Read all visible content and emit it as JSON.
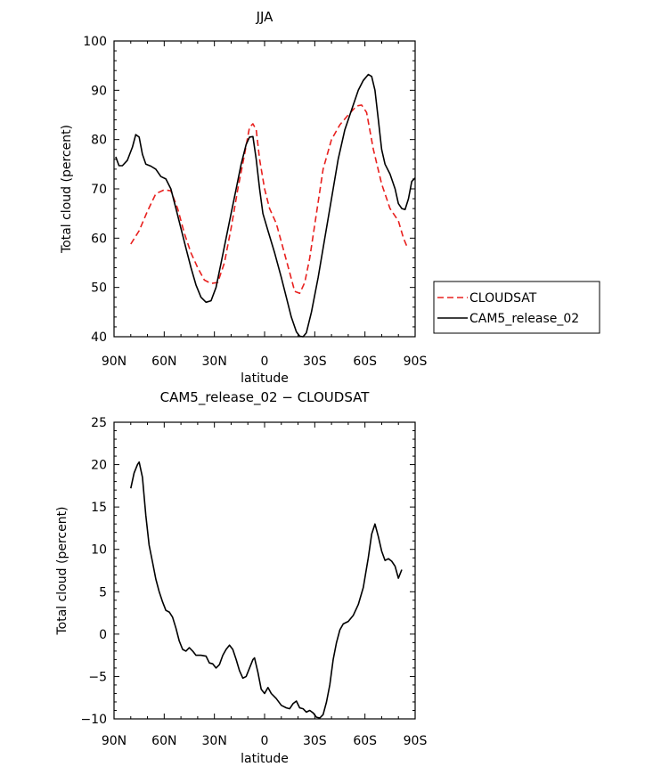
{
  "chart_data": [
    {
      "type": "line",
      "title": "JJA",
      "xlabel": "latitude",
      "ylabel": "Total cloud (percent)",
      "xlim": [
        90,
        -90
      ],
      "ylim": [
        40,
        100
      ],
      "x_ticks": [
        90,
        60,
        30,
        0,
        -30,
        -60,
        -90
      ],
      "x_tick_labels": [
        "90N",
        "60N",
        "30N",
        "0",
        "30S",
        "60S",
        "90S"
      ],
      "y_ticks": [
        40,
        50,
        60,
        70,
        80,
        90,
        100
      ],
      "y_tick_labels": [
        "40",
        "50",
        "60",
        "70",
        "80",
        "90",
        "100"
      ],
      "legend_position": "right",
      "series": [
        {
          "name": "CLOUDSAT",
          "color": "#e8201e",
          "dash": "dashed",
          "points": [
            [
              80,
              58.8
            ],
            [
              75,
              61.5
            ],
            [
              70,
              65.5
            ],
            [
              65,
              69
            ],
            [
              60,
              69.8
            ],
            [
              56,
              69.6
            ],
            [
              52,
              66
            ],
            [
              48,
              61
            ],
            [
              44,
              57
            ],
            [
              40,
              54
            ],
            [
              36,
              51.5
            ],
            [
              32,
              50.8
            ],
            [
              28,
              51
            ],
            [
              24,
              55
            ],
            [
              20,
              62
            ],
            [
              16,
              70
            ],
            [
              12,
              77
            ],
            [
              9,
              82.5
            ],
            [
              7,
              83.2
            ],
            [
              5,
              82
            ],
            [
              3,
              76
            ],
            [
              0,
              70
            ],
            [
              -3,
              66
            ],
            [
              -7,
              63
            ],
            [
              -11,
              58
            ],
            [
              -15,
              53
            ],
            [
              -18,
              49.2
            ],
            [
              -21,
              48.8
            ],
            [
              -24,
              51
            ],
            [
              -27,
              56
            ],
            [
              -31,
              65
            ],
            [
              -35,
              74
            ],
            [
              -40,
              80
            ],
            [
              -45,
              83
            ],
            [
              -50,
              85
            ],
            [
              -55,
              86.8
            ],
            [
              -58,
              87
            ],
            [
              -61,
              85.5
            ],
            [
              -65,
              78
            ],
            [
              -70,
              71
            ],
            [
              -75,
              66
            ],
            [
              -80,
              63.5
            ],
            [
              -83,
              60
            ],
            [
              -85,
              58.4
            ]
          ]
        },
        {
          "name": "CAM5_release_02",
          "color": "#000000",
          "dash": "solid",
          "points": [
            [
              89,
              76.5
            ],
            [
              87,
              74.7
            ],
            [
              85,
              74.7
            ],
            [
              82,
              75.8
            ],
            [
              79,
              78.5
            ],
            [
              77,
              81
            ],
            [
              75,
              80.5
            ],
            [
              73,
              77
            ],
            [
              71,
              75
            ],
            [
              68,
              74.6
            ],
            [
              65,
              74
            ],
            [
              62,
              72.5
            ],
            [
              59,
              72
            ],
            [
              56,
              70
            ],
            [
              53,
              66
            ],
            [
              50,
              62
            ],
            [
              47,
              58
            ],
            [
              44,
              54
            ],
            [
              41,
              50.5
            ],
            [
              38,
              48
            ],
            [
              35,
              47
            ],
            [
              32,
              47.3
            ],
            [
              29,
              50
            ],
            [
              26,
              55
            ],
            [
              23,
              60
            ],
            [
              20,
              65
            ],
            [
              17,
              70
            ],
            [
              14,
              75
            ],
            [
              11,
              79
            ],
            [
              9,
              80.5
            ],
            [
              7,
              80.6
            ],
            [
              5,
              76
            ],
            [
              3,
              70
            ],
            [
              1,
              65
            ],
            [
              -2,
              61.5
            ],
            [
              -6,
              57
            ],
            [
              -10,
              52
            ],
            [
              -13,
              48
            ],
            [
              -16,
              44
            ],
            [
              -19,
              41
            ],
            [
              -21,
              40.1
            ],
            [
              -23,
              40
            ],
            [
              -25,
              40.8
            ],
            [
              -28,
              45
            ],
            [
              -32,
              52
            ],
            [
              -36,
              60
            ],
            [
              -40,
              68
            ],
            [
              -44,
              76
            ],
            [
              -48,
              82
            ],
            [
              -52,
              86
            ],
            [
              -56,
              90
            ],
            [
              -59,
              92
            ],
            [
              -62,
              93.2
            ],
            [
              -64,
              92.8
            ],
            [
              -66,
              90
            ],
            [
              -68,
              84
            ],
            [
              -70,
              78
            ],
            [
              -72,
              75
            ],
            [
              -75,
              73
            ],
            [
              -78,
              70
            ],
            [
              -80,
              67
            ],
            [
              -82,
              66
            ],
            [
              -84,
              65.8
            ],
            [
              -86,
              68
            ],
            [
              -88,
              71.5
            ],
            [
              -90,
              72.2
            ]
          ]
        }
      ]
    },
    {
      "type": "line",
      "title": "CAM5_release_02 − CLOUDSAT",
      "xlabel": "latitude",
      "ylabel": "Total cloud (percent)",
      "xlim": [
        90,
        -90
      ],
      "ylim": [
        -10,
        25
      ],
      "x_ticks": [
        90,
        60,
        30,
        0,
        -30,
        -60,
        -90
      ],
      "x_tick_labels": [
        "90N",
        "60N",
        "30N",
        "0",
        "30S",
        "60S",
        "90S"
      ],
      "y_ticks": [
        -10,
        -5,
        0,
        5,
        10,
        15,
        20,
        25
      ],
      "y_tick_labels": [
        "−10",
        "−5",
        "0",
        "5",
        "10",
        "15",
        "20",
        "25"
      ],
      "series": [
        {
          "color": "#000000",
          "dash": "solid",
          "points": [
            [
              80,
              17.2
            ],
            [
              78,
              19
            ],
            [
              76,
              20
            ],
            [
              75,
              20.3
            ],
            [
              73,
              18.5
            ],
            [
              71,
              14
            ],
            [
              69,
              10.5
            ],
            [
              67,
              8.5
            ],
            [
              65,
              6.5
            ],
            [
              63,
              5
            ],
            [
              61,
              3.8
            ],
            [
              59,
              2.8
            ],
            [
              57,
              2.6
            ],
            [
              55,
              2
            ],
            [
              53,
              0.7
            ],
            [
              51,
              -0.8
            ],
            [
              49,
              -1.8
            ],
            [
              47,
              -2
            ],
            [
              45,
              -1.6
            ],
            [
              43,
              -2
            ],
            [
              41,
              -2.5
            ],
            [
              38,
              -2.5
            ],
            [
              35,
              -2.6
            ],
            [
              33,
              -3.4
            ],
            [
              31,
              -3.5
            ],
            [
              29,
              -4
            ],
            [
              27,
              -3.6
            ],
            [
              25,
              -2.5
            ],
            [
              23,
              -1.8
            ],
            [
              21,
              -1.3
            ],
            [
              19,
              -1.8
            ],
            [
              17,
              -3
            ],
            [
              15,
              -4.3
            ],
            [
              13,
              -5.2
            ],
            [
              11,
              -5
            ],
            [
              9,
              -4
            ],
            [
              7,
              -3
            ],
            [
              6,
              -2.8
            ],
            [
              4,
              -4.5
            ],
            [
              2,
              -6.5
            ],
            [
              0,
              -7
            ],
            [
              -2,
              -6.3
            ],
            [
              -4,
              -7
            ],
            [
              -7,
              -7.6
            ],
            [
              -10,
              -8.4
            ],
            [
              -13,
              -8.7
            ],
            [
              -15,
              -8.8
            ],
            [
              -17,
              -8.2
            ],
            [
              -19,
              -7.9
            ],
            [
              -21,
              -8.7
            ],
            [
              -23,
              -8.8
            ],
            [
              -25,
              -9.2
            ],
            [
              -27,
              -9
            ],
            [
              -29,
              -9.3
            ],
            [
              -31,
              -9.8
            ],
            [
              -33,
              -9.9
            ],
            [
              -35,
              -9.5
            ],
            [
              -37,
              -8
            ],
            [
              -39,
              -6
            ],
            [
              -41,
              -3
            ],
            [
              -43,
              -1
            ],
            [
              -45,
              0.5
            ],
            [
              -47,
              1.2
            ],
            [
              -50,
              1.5
            ],
            [
              -53,
              2.2
            ],
            [
              -56,
              3.5
            ],
            [
              -59,
              5.5
            ],
            [
              -62,
              9
            ],
            [
              -64,
              11.8
            ],
            [
              -66,
              13
            ],
            [
              -68,
              11.5
            ],
            [
              -70,
              9.8
            ],
            [
              -72,
              8.7
            ],
            [
              -74,
              8.9
            ],
            [
              -76,
              8.6
            ],
            [
              -78,
              8
            ],
            [
              -80,
              6.6
            ],
            [
              -82,
              7.6
            ]
          ]
        }
      ]
    }
  ]
}
